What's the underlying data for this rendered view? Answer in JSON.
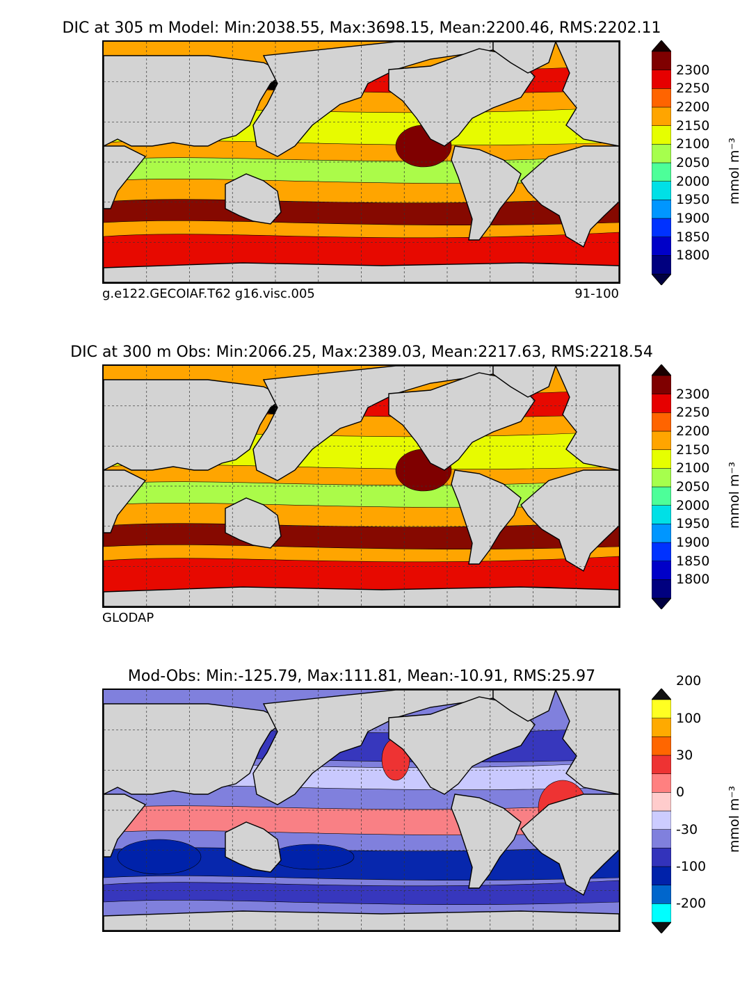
{
  "panels": [
    {
      "title": "DIC at 305 m Model: Min:2038.55, Max:3698.15, Mean:2200.46, RMS:2202.11",
      "footer_left": "g.e122.GECOIAF.T62 g16.visc.005",
      "footer_right": "91-100",
      "colorbar": {
        "unit": "mmol m⁻³",
        "labels": [
          "1800",
          "1850",
          "1900",
          "1950",
          "2000",
          "2050",
          "2100",
          "2150",
          "2200",
          "2250",
          "2300"
        ],
        "colors": [
          "#00007f",
          "#0000c8",
          "#0032ff",
          "#0096ff",
          "#00e0e6",
          "#4dff99",
          "#a6ff4d",
          "#e6ff00",
          "#ffa500",
          "#ff6400",
          "#e60000",
          "#7f0000"
        ],
        "extend_top": "#1a0000",
        "extend_bottom": "#000040"
      },
      "dominant_bands": [
        "#ffa500",
        "#e60000",
        "#e6ff00",
        "#a6ff4d",
        "#7f0000"
      ]
    },
    {
      "title": "DIC at 300 m Obs: Min:2066.25, Max:2389.03, Mean:2217.63, RMS:2218.54",
      "footer_left": "GLODAP",
      "footer_right": "",
      "colorbar": {
        "unit": "mmol m⁻³",
        "labels": [
          "1800",
          "1850",
          "1900",
          "1950",
          "2000",
          "2050",
          "2100",
          "2150",
          "2200",
          "2250",
          "2300"
        ],
        "colors": [
          "#00007f",
          "#0000c8",
          "#0032ff",
          "#0096ff",
          "#00e0e6",
          "#4dff99",
          "#a6ff4d",
          "#e6ff00",
          "#ffa500",
          "#ff6400",
          "#e60000",
          "#7f0000"
        ],
        "extend_top": "#1a0000",
        "extend_bottom": "#000040"
      },
      "dominant_bands": [
        "#ffa500",
        "#e60000",
        "#e6ff00",
        "#a6ff4d",
        "#7f0000"
      ]
    },
    {
      "title": "Mod-Obs: Min:-125.79, Max:111.81, Mean:-10.91, RMS:25.97",
      "footer_left": "",
      "footer_right": "",
      "colorbar": {
        "unit": "mmol m⁻³",
        "labels": [
          "-200",
          "-100",
          "-30",
          "0",
          "30",
          "100",
          "200"
        ],
        "colors": [
          "#00ffff",
          "#0066cc",
          "#0022aa",
          "#3333bb",
          "#8080dd",
          "#ccccff",
          "#ffcccc",
          "#ff8080",
          "#ee3333",
          "#ff6600",
          "#ffaa00",
          "#ffff22"
        ],
        "extend_top": "#111111",
        "extend_bottom": "#111111"
      },
      "dominant_bands": [
        "#8080dd",
        "#3333bb",
        "#ccccff",
        "#ff8080",
        "#0022aa"
      ]
    }
  ],
  "chart_data": [
    {
      "type": "heatmap",
      "title": "DIC at 305 m Model: Min:2038.55, Max:3698.15, Mean:2200.46, RMS:2202.11",
      "colorbar_ticks": [
        1800,
        1850,
        1900,
        1950,
        2000,
        2050,
        2100,
        2150,
        2200,
        2250,
        2300
      ],
      "min": 2038.55,
      "max": 3698.15,
      "mean": 2200.46,
      "rms": 2202.11
    },
    {
      "type": "heatmap",
      "title": "DIC at 300 m Obs: Min:2066.25, Max:2389.03, Mean:2217.63, RMS:2218.54",
      "colorbar_ticks": [
        1800,
        1850,
        1900,
        1950,
        2000,
        2050,
        2100,
        2150,
        2200,
        2250,
        2300
      ],
      "min": 2066.25,
      "max": 2389.03,
      "mean": 2217.63,
      "rms": 2218.54
    },
    {
      "type": "heatmap",
      "title": "Mod-Obs: Min:-125.79, Max:111.81, Mean:-10.91, RMS:25.97",
      "colorbar_ticks": [
        -200,
        -100,
        -30,
        0,
        30,
        100,
        200
      ],
      "min": -125.79,
      "max": 111.81,
      "mean": -10.91,
      "rms": 25.97
    }
  ]
}
